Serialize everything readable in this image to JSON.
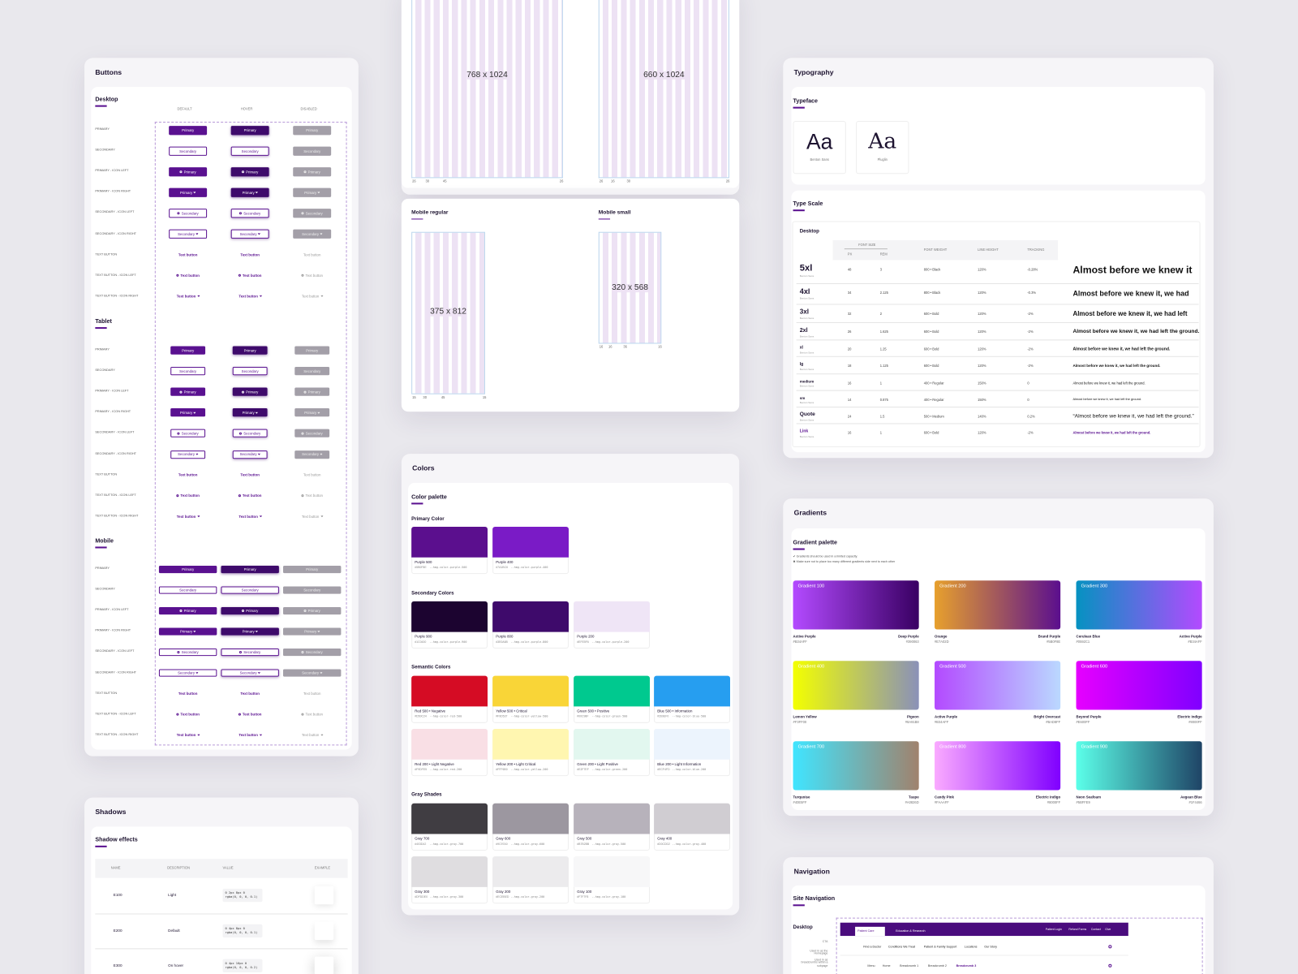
{
  "buttons": {
    "title": "Buttons",
    "columns": [
      "DEFAULT",
      "HOVER",
      "DISABLED"
    ],
    "sections": [
      "Desktop",
      "Tablet",
      "Mobile"
    ],
    "row_labels": [
      "PRIMARY",
      "SECONDARY",
      "PRIMARY - ICON LEFT",
      "PRIMARY - ICON RIGHT",
      "SECONDARY - ICON LEFT",
      "SECONDARY - ICON RIGHT",
      "TEXT BUTTON",
      "TEXT BUTTON - ICON LEFT",
      "TEXT BUTTON - ICON RIGHT"
    ],
    "labels": {
      "primary": "Primary",
      "secondary": "Secondary",
      "text": "Text button"
    }
  },
  "layouts": {
    "grids": [
      {
        "size": "768 x 1024",
        "marks": [
          "26",
          "30",
          "45",
          "26"
        ]
      },
      {
        "size": "660 x 1024",
        "marks": [
          "26",
          "16",
          "30",
          "26"
        ]
      },
      {
        "title": "Mobile regular",
        "size": "375 x 812",
        "marks": [
          "15",
          "30",
          "45",
          "15"
        ]
      },
      {
        "title": "Mobile small",
        "size": "320 x 568",
        "marks": [
          "16",
          "16",
          "36",
          "16"
        ]
      }
    ]
  },
  "typography": {
    "title": "Typography",
    "typeface_title": "Typeface",
    "typefaces": [
      {
        "sample": "Aa",
        "name": "Benton Sans"
      },
      {
        "sample": "Aa",
        "name": "Pluglin"
      }
    ],
    "scale_title": "Type Scale",
    "scale_subtitle": "Desktop",
    "group_header": "FONT SIZE",
    "headers": [
      "PX",
      "REM",
      "FONT WEIGHT",
      "LINE HEIGHT",
      "TRACKING"
    ],
    "rows": [
      {
        "name": "5xl",
        "font": "Benton Sans",
        "cells": [
          "48",
          "3",
          "800 • Black",
          "120%",
          "-0.28%"
        ],
        "sample": "Almost before we knew it"
      },
      {
        "name": "4xl",
        "font": "Benton Sans",
        "cells": [
          "34",
          "2.125",
          "800 • Black",
          "120%",
          "-0.3%"
        ],
        "sample": "Almost before we knew it, we had"
      },
      {
        "name": "3xl",
        "font": "Benton Sans",
        "cells": [
          "32",
          "2",
          "600 • Bold",
          "120%",
          "-2%"
        ],
        "sample": "Almost before we knew it, we had left"
      },
      {
        "name": "2xl",
        "font": "Benton Sans",
        "cells": [
          "26",
          "1.625",
          "600 • Bold",
          "120%",
          "-2%"
        ],
        "sample": "Almost before we knew it, we had left the ground."
      },
      {
        "name": "xl",
        "font": "Benton Sans",
        "cells": [
          "20",
          "1.25",
          "600 • Bold",
          "120%",
          "-2%"
        ],
        "sample": "Almost before we knew it, we had left the ground."
      },
      {
        "name": "lg",
        "font": "Benton Sans",
        "cells": [
          "18",
          "1.125",
          "600 • Bold",
          "120%",
          "-2%"
        ],
        "sample": "Almost before we knew it, we had left the ground."
      },
      {
        "name": "medium",
        "font": "Benton Sans",
        "cells": [
          "16",
          "1",
          "400 • Regular",
          "150%",
          "0"
        ],
        "sample": "Almost before we knew it, we had left the ground."
      },
      {
        "name": "sm",
        "font": "Benton Sans",
        "cells": [
          "14",
          "0.875",
          "400 • Regular",
          "150%",
          "0"
        ],
        "sample": "Almost before we knew it, we had left the ground."
      },
      {
        "name": "Quote",
        "font": "Benton Sans",
        "cells": [
          "24",
          "1.5",
          "500 • Medium",
          "140%",
          "0.2%"
        ],
        "sample": "“Almost before we knew it, we had left the ground.”"
      },
      {
        "name": "Link",
        "font": "Benton Sans",
        "cells": [
          "16",
          "1",
          "600 • Bold",
          "120%",
          "-2%"
        ],
        "sample": "Almost before we knew it, we had left the ground."
      }
    ]
  },
  "colors": {
    "title": "Colors",
    "palette_title": "Color palette",
    "groups": [
      {
        "name": "Primary Color",
        "swatches": [
          {
            "name": "Purple 500",
            "hex": "#5B0F8E",
            "token": "--hmg-color-purple-500"
          },
          {
            "name": "Purple 400",
            "hex": "#7A1BC6",
            "token": "--hmg-color-purple-400"
          }
        ]
      },
      {
        "name": "Secondary Colors",
        "swatches": [
          {
            "name": "Purple 900",
            "hex": "#1C0430",
            "token": "--hmg-color-purple-900"
          },
          {
            "name": "Purple 800",
            "hex": "#3E0A6B",
            "token": "--hmg-color-purple-800"
          },
          {
            "name": "Purple 200",
            "hex": "#EFE5F6",
            "token": "--hmg-color-purple-200"
          }
        ]
      },
      {
        "name": "Semantic Colors",
        "swatches": [
          {
            "name": "Red 500 • Negative",
            "hex": "#D50C24",
            "token": "--hmg-color-red-500"
          },
          {
            "name": "Yellow 500 • Critical",
            "hex": "#F9D537",
            "token": "--hmg-color-yellow-500"
          },
          {
            "name": "Green 500 • Positive",
            "hex": "#00C98F",
            "token": "--hmg-color-green-500"
          },
          {
            "name": "Blue 500 • Information",
            "hex": "#269EF0",
            "token": "--hmg-color-blue-500"
          },
          {
            "name": "Red 200 • Light Negative",
            "hex": "#F9DFE5",
            "token": "--hmg-color-red-200"
          },
          {
            "name": "Yellow 200 • Light Critical",
            "hex": "#FFF6B0",
            "token": "--hmg-color-yellow-200"
          },
          {
            "name": "Green 200 • Light Positive",
            "hex": "#E2F7EF",
            "token": "--hmg-color-green-200"
          },
          {
            "name": "Blue 200 • Light Information",
            "hex": "#ECF4FD",
            "token": "--hmg-color-blue-200"
          }
        ]
      },
      {
        "name": "Gray Shades",
        "swatches": [
          {
            "name": "Gray 700",
            "hex": "#403D42",
            "token": "--hmg-color-gray-700"
          },
          {
            "name": "Gray 600",
            "hex": "#9C97A0",
            "token": "--hmg-color-gray-600"
          },
          {
            "name": "Gray 500",
            "hex": "#B7B2BB",
            "token": "--hmg-color-gray-500"
          },
          {
            "name": "Gray 400",
            "hex": "#D0CDD2",
            "token": "--hmg-color-gray-400"
          },
          {
            "name": "Gray 300",
            "hex": "#DFDDE0",
            "token": "--hmg-color-gray-300"
          },
          {
            "name": "Gray 200",
            "hex": "#ECEBED",
            "token": "--hmg-color-gray-200"
          },
          {
            "name": "Gray 100",
            "hex": "#F7F7F8",
            "token": "--hmg-color-gray-100"
          }
        ]
      }
    ]
  },
  "gradients": {
    "title": "Gradients",
    "palette_title": "Gradient palette",
    "notes": [
      "✔ Gradients should be used in a limited capacity.",
      "✖ Make sure not to place too many different gradients side next to each other"
    ],
    "items": [
      {
        "name": "Gradient 100",
        "start": {
          "name": "Active Purple",
          "hex": "#B34AFF"
        },
        "end": {
          "name": "Deep Purple",
          "hex": "#390063"
        }
      },
      {
        "name": "Gradient 200",
        "start": {
          "name": "Orange",
          "hex": "#E7A02D"
        },
        "end": {
          "name": "Brand Purple",
          "hex": "#5B0F8E"
        }
      },
      {
        "name": "Gradient 300",
        "start": {
          "name": "Cerulean Blue",
          "hex": "#0592C1"
        },
        "end": {
          "name": "Active Purple",
          "hex": "#B34AFF"
        }
      },
      {
        "name": "Gradient 400",
        "start": {
          "name": "Lemon Yellow",
          "hex": "#F3FF00"
        },
        "end": {
          "name": "Pigeon",
          "hex": "#8A91B8"
        }
      },
      {
        "name": "Gradient 500",
        "start": {
          "name": "Active Purple",
          "hex": "#B34AFF"
        },
        "end": {
          "name": "Bright Overcast",
          "hex": "#BAD8FF"
        }
      },
      {
        "name": "Gradient 600",
        "start": {
          "name": "Beyond Purple",
          "hex": "#E600FF"
        },
        "end": {
          "name": "Electric Indigo",
          "hex": "#8000FF"
        }
      },
      {
        "name": "Gradient 700",
        "start": {
          "name": "Turquoise",
          "hex": "#40E5FF"
        },
        "end": {
          "name": "Taupe",
          "hex": "#A0826D"
        }
      },
      {
        "name": "Gradient 800",
        "start": {
          "name": "Candy Pink",
          "hex": "#FAAAFF"
        },
        "end": {
          "name": "Electric Indigo",
          "hex": "#8000FF"
        }
      },
      {
        "name": "Gradient 900",
        "start": {
          "name": "Neon Seafoam",
          "hex": "#5BFFE9"
        },
        "end": {
          "name": "Aegean Blue",
          "hex": "#1F4466"
        }
      }
    ]
  },
  "shadows": {
    "title": "Shadows",
    "subtitle": "Shadow effects",
    "headers": [
      "NAME",
      "DESCRIPTION",
      "VALUE",
      "EXAMPLE"
    ],
    "rows": [
      {
        "name": "E100",
        "description": "Light",
        "value": "0 2px 8px 0 rgba(0, 0, 0, 0.1)"
      },
      {
        "name": "E200",
        "description": "Default",
        "value": "0 4px 8px 0 rgba(0, 0, 0, 0.1)"
      },
      {
        "name": "E300",
        "description": "On hover",
        "value": "0 4px 16px 0 rgba(0, 0, 0, 0.2)"
      }
    ]
  },
  "navigation": {
    "title": "Navigation",
    "subtitle": "Site Navigation",
    "device": "Desktop",
    "notes": [
      "CTA",
      "Used in as the Homepage",
      "Used in as breadcrumbs within a subpage"
    ],
    "top_tabs": [
      "Patient Care",
      "Education & Research"
    ],
    "top_links": [
      "Patient Login",
      "Refund Forms",
      "Contact",
      "Give"
    ],
    "menu": [
      "Find a Doctor",
      "Conditions We Treat",
      "Patient & Family Support",
      "Locations",
      "Our Story"
    ],
    "breadcrumbs": [
      "Menu",
      "Home",
      "Breadcrumb 1",
      "Breadcrumb 2",
      "Breadcrumb 3"
    ]
  }
}
